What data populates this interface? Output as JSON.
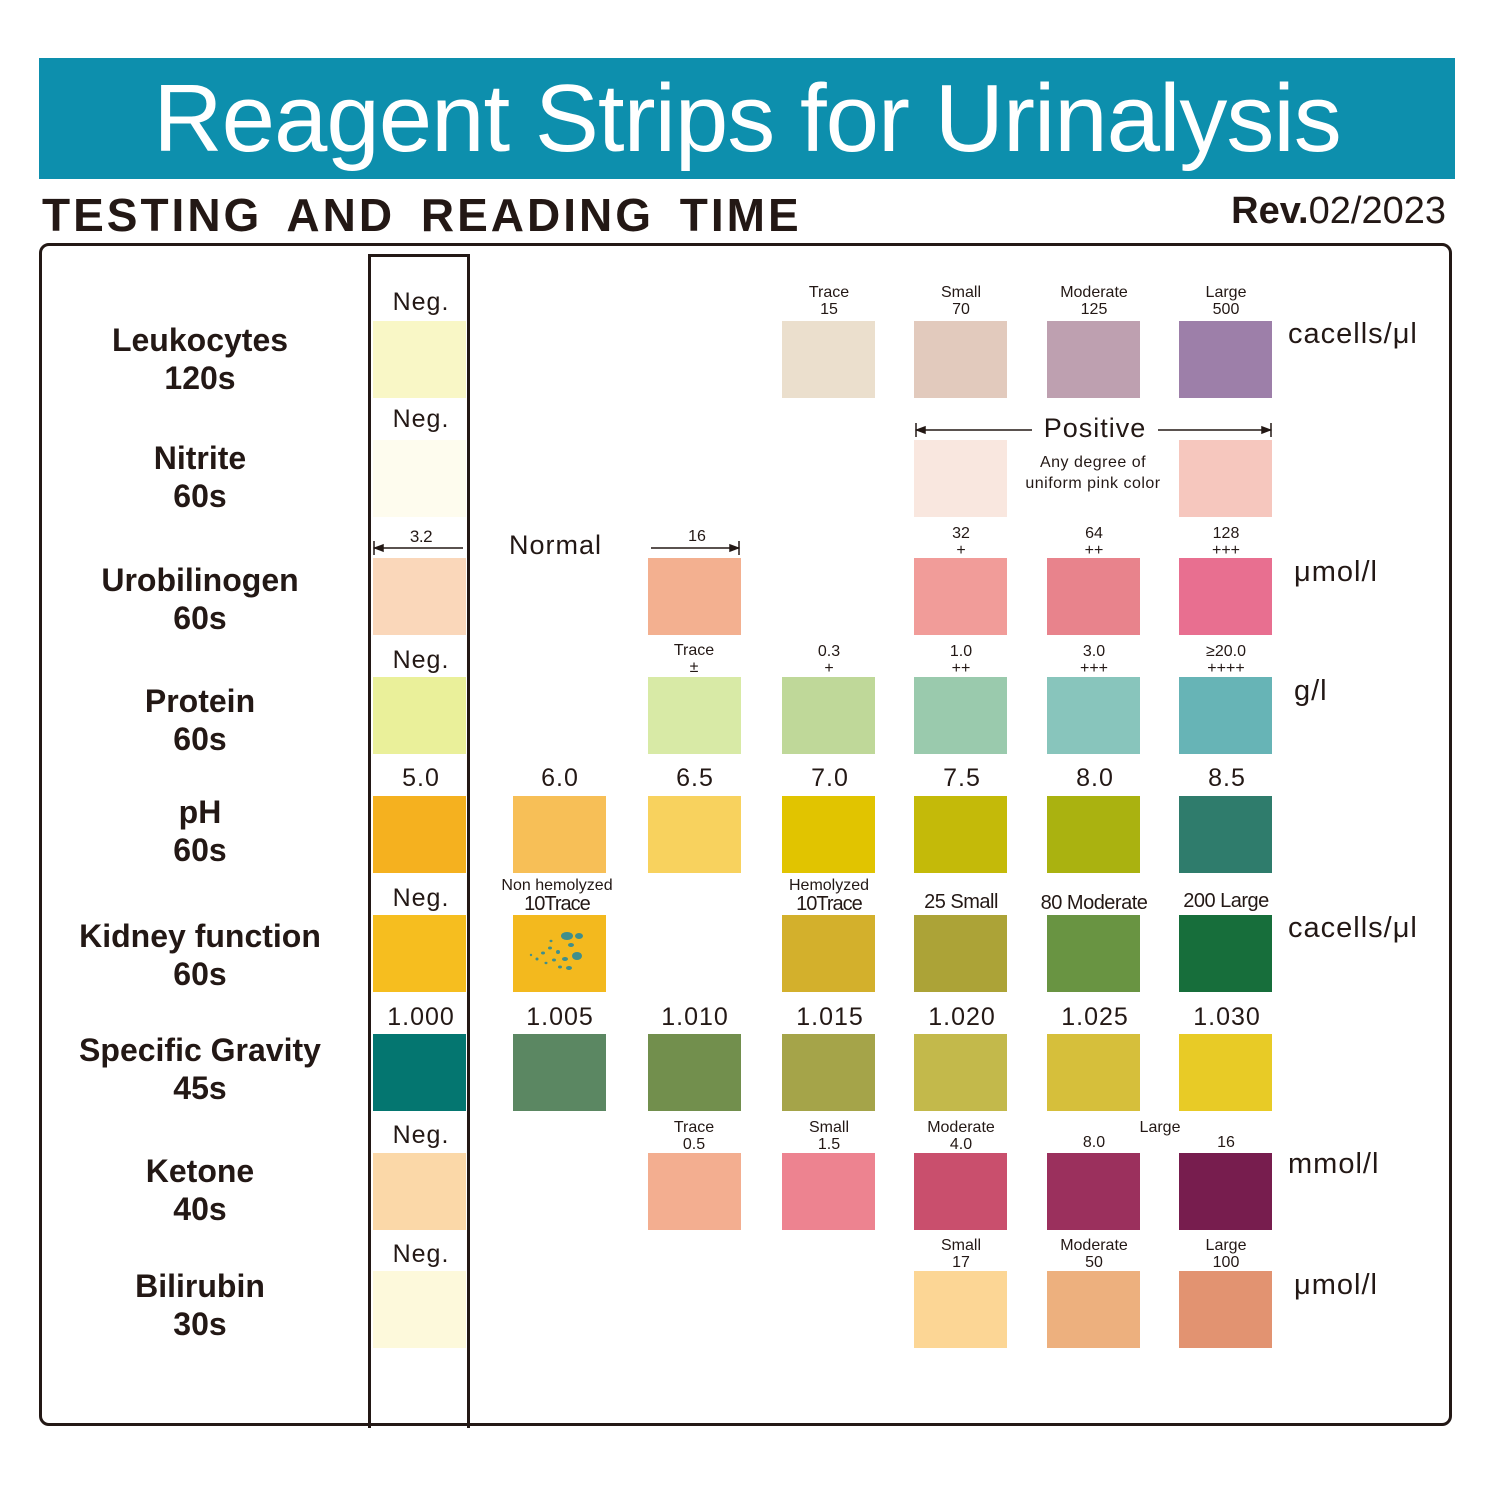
{
  "header": {
    "title": "Reagent Strips for Urinalysis",
    "subtitle": "TESTING AND READING TIME",
    "rev_prefix": "Rev.",
    "rev_date": "02/2023",
    "banner_color": "#0d8fad"
  },
  "parameters": [
    {
      "name": "Leukocytes",
      "time": "120s"
    },
    {
      "name": "Nitrite",
      "time": "60s"
    },
    {
      "name": "Urobilinogen",
      "time": "60s"
    },
    {
      "name": "Protein",
      "time": "60s"
    },
    {
      "name": "pH",
      "time": "60s"
    },
    {
      "name": "Kidney function",
      "time": "60s"
    },
    {
      "name": "Specific Gravity",
      "time": "45s"
    },
    {
      "name": "Ketone",
      "time": "40s"
    },
    {
      "name": "Bilirubin",
      "time": "30s"
    }
  ],
  "units": {
    "leukocytes": "cacells/μl",
    "urobilinogen": "μmol/l",
    "protein": "g/l",
    "kidney": "cacells/μl",
    "ketone": "mmol/l",
    "bilirubin": "μmol/l"
  },
  "leukocytes": {
    "neg": "Neg.",
    "levels": [
      {
        "name": "Trace",
        "value": "15"
      },
      {
        "name": "Small",
        "value": "70"
      },
      {
        "name": "Moderate",
        "value": "125"
      },
      {
        "name": "Large",
        "value": "500"
      }
    ],
    "colors": [
      "#f9f7c6",
      "#ebdfcd",
      "#e2cabd",
      "#bea0b0",
      "#9d7fa9"
    ]
  },
  "nitrite": {
    "neg": "Neg.",
    "positive": "Positive",
    "note_line1": "Any degree of",
    "note_line2": "uniform pink color",
    "colors": [
      "#fefcee",
      "#f9e7df",
      "#f6c7be"
    ]
  },
  "urobilinogen": {
    "ref": "3.2",
    "normal": "Normal",
    "levels": [
      {
        "value": "16",
        "sign": ""
      },
      {
        "value": "32",
        "sign": "+"
      },
      {
        "value": "64",
        "sign": "++"
      },
      {
        "value": "128",
        "sign": "+++"
      }
    ],
    "colors": [
      "#fad7ba",
      "#f3b090",
      "#f19c99",
      "#e8838c",
      "#e86f90"
    ]
  },
  "protein": {
    "neg": "Neg.",
    "levels": [
      {
        "value": "Trace",
        "sign": "±"
      },
      {
        "value": "0.3",
        "sign": "+"
      },
      {
        "value": "1.0",
        "sign": "++"
      },
      {
        "value": "3.0",
        "sign": "+++"
      },
      {
        "value": "≥20.0",
        "sign": "++++"
      }
    ],
    "colors": [
      "#eaf09a",
      "#d8eaa6",
      "#bfd899",
      "#9acaad",
      "#88c5bc",
      "#67b4b6"
    ]
  },
  "ph": {
    "values": [
      "5.0",
      "6.0",
      "6.5",
      "7.0",
      "7.5",
      "8.0",
      "8.5"
    ],
    "colors": [
      "#f5b11f",
      "#f7bf57",
      "#f8d25e",
      "#e1c400",
      "#c4ba09",
      "#aab210",
      "#2f7c6c"
    ]
  },
  "kidney": {
    "neg": "Neg.",
    "nonhemo_top": "Non hemolyzed",
    "nonhemo_bottom": "10Trace",
    "hemo_top": "Hemolyzed",
    "hemo_bottom": "10Trace",
    "levels": [
      "25 Small",
      "80 Moderate",
      "200 Large"
    ],
    "colors": [
      "#f6be1f",
      "#f3b91e",
      "#d3b02c",
      "#aca337",
      "#699442",
      "#176e3b"
    ],
    "speckle_color": "#3f8f8c"
  },
  "specific_gravity": {
    "values": [
      "1.000",
      "1.005",
      "1.010",
      "1.015",
      "1.020",
      "1.025",
      "1.030"
    ],
    "colors": [
      "#047670",
      "#5b8762",
      "#728f4d",
      "#a5a449",
      "#c3b94b",
      "#d6bf3b",
      "#e8cb26"
    ]
  },
  "ketone": {
    "neg": "Neg.",
    "levels": [
      {
        "name": "Trace",
        "value": "0.5"
      },
      {
        "name": "Small",
        "value": "1.5"
      },
      {
        "name": "Moderate",
        "value": "4.0"
      },
      {
        "name": "",
        "value": "8.0"
      },
      {
        "name": "",
        "value": "16"
      }
    ],
    "large_label": "Large",
    "colors": [
      "#fbd8a8",
      "#f3ae90",
      "#ed8390",
      "#c94f6d",
      "#9b305d",
      "#771d4e"
    ]
  },
  "bilirubin": {
    "neg": "Neg.",
    "levels": [
      {
        "name": "Small",
        "value": "17"
      },
      {
        "name": "Moderate",
        "value": "50"
      },
      {
        "name": "Large",
        "value": "100"
      }
    ],
    "colors": [
      "#fdf9db",
      "#fcd695",
      "#edb07e",
      "#e29371"
    ]
  }
}
